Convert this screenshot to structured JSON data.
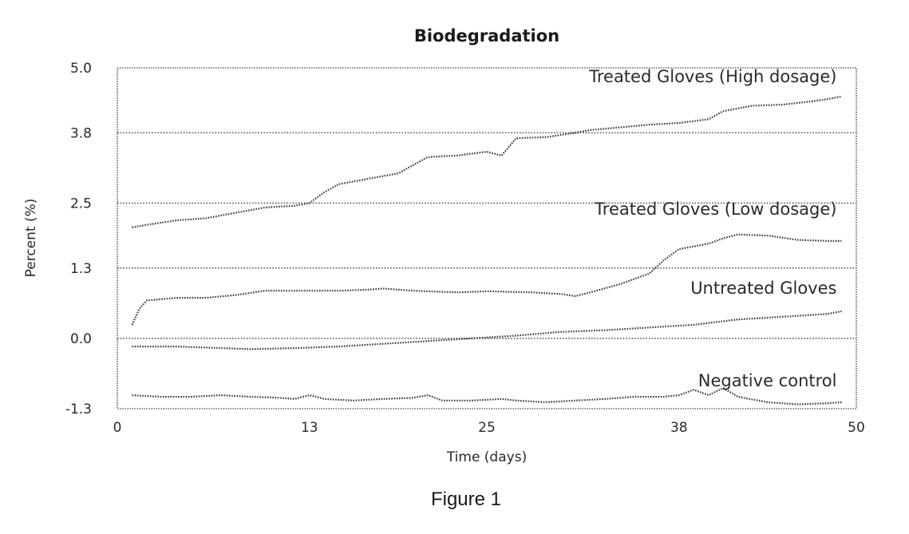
{
  "chart_data": {
    "type": "line",
    "title": "Biodegradation",
    "xlabel": "Time (days)",
    "ylabel": "Percent (%)",
    "xlim": [
      0,
      50
    ],
    "ylim": [
      -1.3,
      5.0
    ],
    "x_ticks": [
      0,
      13,
      25,
      38,
      50
    ],
    "x_tick_labels": [
      "0",
      "13",
      "25",
      "38",
      "50"
    ],
    "y_ticks": [
      -1.3,
      0.0,
      1.3,
      2.5,
      3.8,
      5.0
    ],
    "y_tick_labels": [
      "-1.3",
      "0.0",
      "1.3",
      "2.5",
      "3.8",
      "5.0"
    ],
    "grid": "horizontal",
    "legend": "inline labels near each line",
    "series": [
      {
        "name": "Treated Gloves (High dosage)",
        "x": [
          1,
          2,
          4,
          6,
          8,
          10,
          12,
          13,
          14,
          15,
          17,
          19,
          20,
          21,
          23,
          25,
          26,
          27,
          29,
          31,
          32,
          34,
          36,
          38,
          40,
          41,
          43,
          45,
          47,
          48,
          49
        ],
        "values": [
          2.05,
          2.1,
          2.18,
          2.22,
          2.32,
          2.42,
          2.45,
          2.5,
          2.7,
          2.85,
          2.95,
          3.05,
          3.2,
          3.35,
          3.38,
          3.45,
          3.38,
          3.7,
          3.72,
          3.8,
          3.85,
          3.9,
          3.95,
          3.98,
          4.05,
          4.2,
          4.3,
          4.32,
          4.38,
          4.42,
          4.47
        ]
      },
      {
        "name": "Treated Gloves (Low dosage)",
        "x": [
          1,
          1.5,
          2,
          4,
          6,
          8,
          10,
          13,
          15,
          17,
          18,
          20,
          23,
          25,
          28,
          30,
          31,
          32,
          34,
          36,
          37,
          38,
          40,
          41,
          42,
          44,
          46,
          48,
          49
        ],
        "values": [
          0.25,
          0.55,
          0.7,
          0.75,
          0.75,
          0.8,
          0.88,
          0.88,
          0.88,
          0.9,
          0.92,
          0.88,
          0.85,
          0.87,
          0.85,
          0.82,
          0.78,
          0.85,
          1.0,
          1.2,
          1.45,
          1.65,
          1.75,
          1.85,
          1.92,
          1.9,
          1.82,
          1.8,
          1.8
        ]
      },
      {
        "name": "Untreated Gloves",
        "x": [
          1,
          4,
          7,
          9,
          12,
          15,
          18,
          21,
          24,
          27,
          30,
          33,
          36,
          39,
          42,
          45,
          48,
          49
        ],
        "values": [
          -0.15,
          -0.15,
          -0.18,
          -0.2,
          -0.18,
          -0.15,
          -0.1,
          -0.05,
          0.0,
          0.05,
          0.12,
          0.15,
          0.2,
          0.25,
          0.35,
          0.4,
          0.45,
          0.5
        ]
      },
      {
        "name": "Negative control",
        "x": [
          1,
          3,
          5,
          7,
          9,
          11,
          12,
          13,
          14,
          16,
          18,
          20,
          21,
          22,
          24,
          26,
          27,
          29,
          31,
          33,
          35,
          37,
          38,
          39,
          40,
          41,
          42,
          44,
          46,
          48,
          49
        ],
        "values": [
          -1.05,
          -1.08,
          -1.08,
          -1.05,
          -1.08,
          -1.1,
          -1.12,
          -1.05,
          -1.12,
          -1.15,
          -1.12,
          -1.1,
          -1.05,
          -1.15,
          -1.15,
          -1.12,
          -1.15,
          -1.18,
          -1.15,
          -1.12,
          -1.08,
          -1.08,
          -1.05,
          -0.95,
          -1.05,
          -0.92,
          -1.08,
          -1.18,
          -1.22,
          -1.2,
          -1.18
        ]
      }
    ]
  },
  "figure_caption": "Figure 1"
}
